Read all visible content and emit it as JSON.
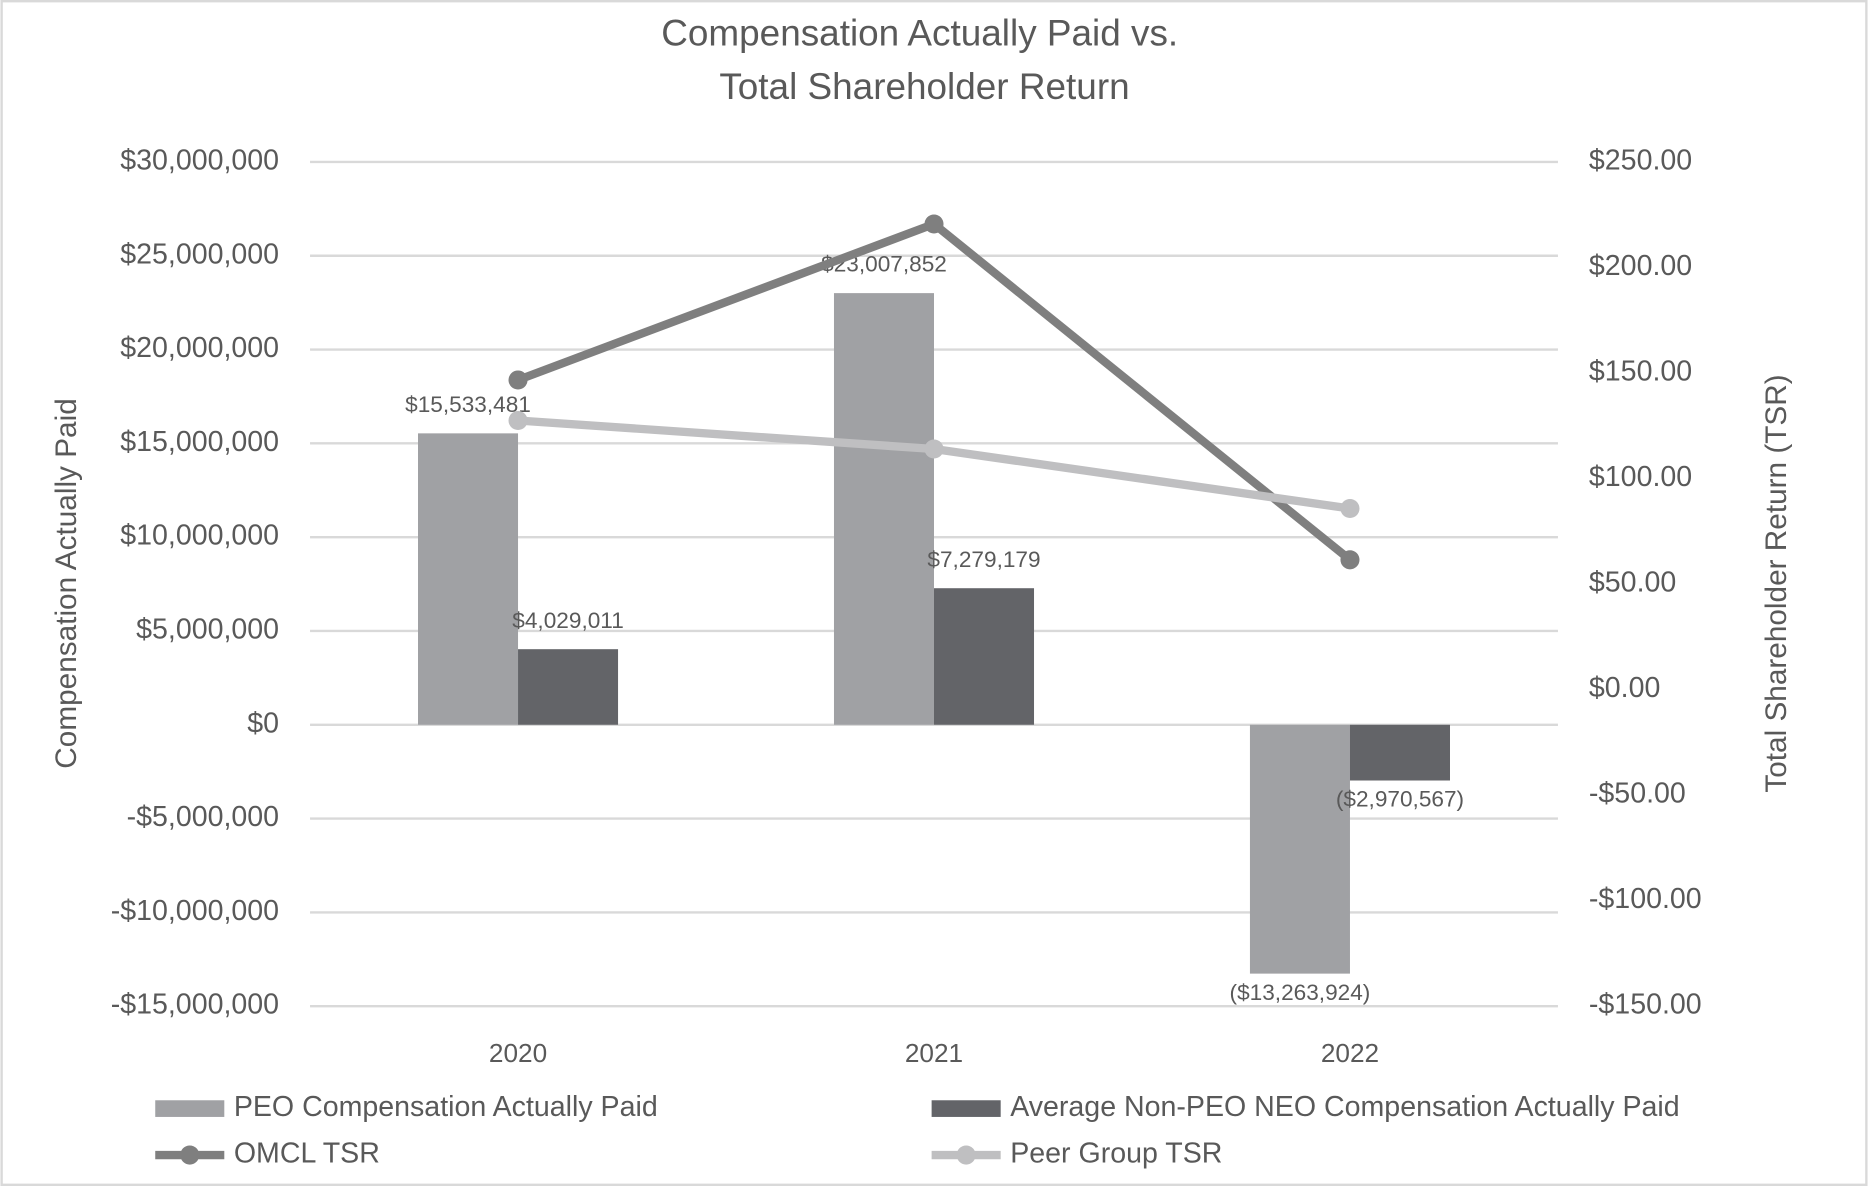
{
  "chart_data": {
    "type": "bar",
    "title": [
      "Compensation Actually Paid  vs.",
      "Total Shareholder Return"
    ],
    "y_label": "Compensation Actually Paid",
    "y2_label": "Total Shareholder Return (TSR)",
    "categories": [
      "2020",
      "2021",
      "2022"
    ],
    "series": [
      {
        "name": "PEO Compensation Actually Paid",
        "type": "bar",
        "color": "#a0a1a4",
        "values": [
          15533481,
          23007852,
          -13263924
        ],
        "value_labels": [
          "$15,533,481",
          "$23,007,852",
          "($13,263,924)"
        ]
      },
      {
        "name": "Average Non-PEO NEO Compensation Actually Paid",
        "type": "bar",
        "color": "#636468",
        "values": [
          4029011,
          7279179,
          -2970567
        ],
        "value_labels": [
          "$4,029,011",
          "$7,279,179",
          "($2,970,567)"
        ]
      },
      {
        "name": "OMCL TSR",
        "type": "line",
        "axis": "y2",
        "color": "#7f7f7f",
        "values": [
          146.7,
          220.6,
          61.5
        ]
      },
      {
        "name": "Peer Group TSR",
        "type": "line",
        "axis": "y2",
        "color": "#bfbfc1",
        "values": [
          127.5,
          114.0,
          85.8
        ]
      }
    ],
    "ylim": [
      -15000000,
      30000000
    ],
    "yticks": [
      {
        "value": -15000000,
        "label": "-$15,000,000"
      },
      {
        "value": -10000000,
        "label": "-$10,000,000"
      },
      {
        "value": -5000000,
        "label": "-$5,000,000"
      },
      {
        "value": 0,
        "label": "$0"
      },
      {
        "value": 5000000,
        "label": "$5,000,000"
      },
      {
        "value": 10000000,
        "label": "$10,000,000"
      },
      {
        "value": 15000000,
        "label": "$15,000,000"
      },
      {
        "value": 20000000,
        "label": "$20,000,000"
      },
      {
        "value": 25000000,
        "label": "$25,000,000"
      },
      {
        "value": 30000000,
        "label": "$30,000,000"
      }
    ],
    "y2lim": [
      -150,
      250
    ],
    "y2ticks": [
      {
        "value": -150,
        "label": "-$150.00"
      },
      {
        "value": -100,
        "label": "-$100.00"
      },
      {
        "value": -50,
        "label": "-$50.00"
      },
      {
        "value": 0,
        "label": "$0.00"
      },
      {
        "value": 50,
        "label": "$50.00"
      },
      {
        "value": 100,
        "label": "$100.00"
      },
      {
        "value": 150,
        "label": "$150.00"
      },
      {
        "value": 200,
        "label": "$200.00"
      },
      {
        "value": 250,
        "label": "$250.00"
      }
    ],
    "grid": true,
    "legend": "bottom"
  }
}
